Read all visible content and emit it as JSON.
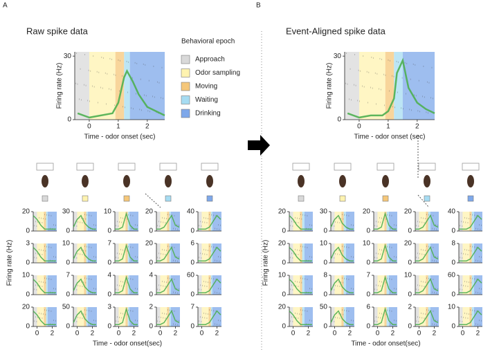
{
  "figure": {
    "panel_labels": [
      "A",
      "B"
    ]
  },
  "legend": {
    "title": "Behavioral epoch",
    "items": [
      {
        "name": "Approach",
        "color": "#d9d9d9"
      },
      {
        "name": "Odor sampling",
        "color": "#fff3b0"
      },
      {
        "name": "Moving",
        "color": "#f5c77a"
      },
      {
        "name": "Waiting",
        "color": "#a6dcf2"
      },
      {
        "name": "Drinking",
        "color": "#7ea8ea"
      }
    ]
  },
  "chart_data": [
    {
      "type": "line",
      "title": "Raw spike data",
      "xlabel": "Time - odor onset (sec)",
      "ylabel": "Firing rate (Hz)",
      "x": [
        -0.4,
        0,
        0.4,
        0.8,
        1.0,
        1.2,
        1.3,
        1.5,
        1.7,
        2.0,
        2.3,
        2.6
      ],
      "values": [
        3,
        1,
        2,
        3,
        8,
        20,
        23,
        18,
        12,
        6,
        4,
        2
      ],
      "color": "#4caf50",
      "xlim": [
        -0.5,
        2.6
      ],
      "xticks": [
        0,
        1,
        2
      ],
      "ylim": [
        0,
        32
      ],
      "yticks": [
        0,
        30
      ],
      "epoch_bounds": [
        -0.5,
        0,
        0.9,
        1.2,
        1.4,
        2.6
      ]
    },
    {
      "type": "line",
      "title": "Event-Aligned spike data",
      "xlabel": "Time - odor onset (sec)",
      "ylabel": "Firing rate (Hz)",
      "x": [
        -0.4,
        0,
        0.4,
        0.8,
        1.0,
        1.2,
        1.3,
        1.5,
        1.7,
        2.0,
        2.3,
        2.6
      ],
      "values": [
        3,
        1,
        2,
        2,
        4,
        10,
        22,
        28,
        15,
        8,
        5,
        3
      ],
      "color": "#4caf50",
      "xlim": [
        -0.5,
        2.6
      ],
      "xticks": [
        0,
        1,
        2
      ],
      "ylim": [
        0,
        32
      ],
      "yticks": [
        0,
        30
      ],
      "epoch_bounds": [
        -0.5,
        0,
        0.9,
        1.2,
        1.5,
        2.6
      ]
    },
    {
      "type": "small_multiples",
      "xlabel": "Time - odor onset(sec)",
      "ylabel": "Firing rate (Hz)",
      "columns": 5,
      "x": [
        -0.5,
        0,
        0.5,
        1,
        1.5,
        2,
        2.5
      ],
      "xlim": [
        -0.5,
        2.6
      ],
      "xticks": [
        0,
        2
      ],
      "color": "#4caf50",
      "epoch_bounds": [
        -0.5,
        0,
        0.9,
        1.2,
        1.4,
        2.6
      ],
      "panels": [
        {
          "ylim": [
            0,
            20
          ],
          "yticks": [
            0,
            20
          ],
          "values": [
            16,
            12,
            6,
            2,
            2,
            2,
            2
          ]
        },
        {
          "ylim": [
            0,
            30
          ],
          "yticks": [
            0,
            30
          ],
          "values": [
            6,
            18,
            24,
            12,
            6,
            3,
            3
          ]
        },
        {
          "ylim": [
            0,
            10
          ],
          "yticks": [
            0,
            10
          ],
          "values": [
            1,
            1,
            2,
            9,
            3,
            1,
            1
          ]
        },
        {
          "ylim": [
            0,
            20
          ],
          "yticks": [
            0,
            20
          ],
          "values": [
            2,
            2,
            4,
            10,
            16,
            6,
            4
          ]
        },
        {
          "ylim": [
            0,
            40
          ],
          "yticks": [
            0,
            40
          ],
          "values": [
            4,
            4,
            4,
            8,
            20,
            32,
            24
          ]
        },
        {
          "ylim": [
            0,
            3
          ],
          "yticks": [
            0,
            3
          ],
          "values": [
            2.4,
            1.8,
            0.9,
            0.3,
            0.3,
            0.3,
            0.3
          ]
        },
        {
          "ylim": [
            0,
            10
          ],
          "yticks": [
            0,
            10
          ],
          "values": [
            2,
            6,
            8,
            4,
            2,
            1,
            1
          ]
        },
        {
          "ylim": [
            0,
            7
          ],
          "yticks": [
            0,
            7
          ],
          "values": [
            0.7,
            0.7,
            1.4,
            6.3,
            2.1,
            0.7,
            0.7
          ]
        },
        {
          "ylim": [
            0,
            20
          ],
          "yticks": [
            0,
            20
          ],
          "values": [
            2,
            2,
            4,
            10,
            16,
            6,
            4
          ]
        },
        {
          "ylim": [
            0,
            6
          ],
          "yticks": [
            0,
            6
          ],
          "values": [
            0.6,
            0.6,
            0.6,
            1.2,
            3,
            4.8,
            3.6
          ]
        },
        {
          "ylim": [
            0,
            10
          ],
          "yticks": [
            0,
            10
          ],
          "values": [
            8,
            6,
            3,
            1,
            1,
            1,
            1
          ]
        },
        {
          "ylim": [
            0,
            7
          ],
          "yticks": [
            0,
            7
          ],
          "values": [
            1.4,
            4.2,
            5.6,
            2.8,
            1.4,
            0.7,
            0.7
          ]
        },
        {
          "ylim": [
            0,
            4
          ],
          "yticks": [
            0,
            4
          ],
          "values": [
            0.4,
            0.4,
            0.8,
            3.6,
            1.2,
            0.4,
            0.4
          ]
        },
        {
          "ylim": [
            0,
            4
          ],
          "yticks": [
            0,
            4
          ],
          "values": [
            0.4,
            0.4,
            0.8,
            2,
            3.2,
            1.2,
            0.8
          ]
        },
        {
          "ylim": [
            0,
            60
          ],
          "yticks": [
            0,
            60
          ],
          "values": [
            6,
            6,
            6,
            12,
            30,
            48,
            36
          ]
        },
        {
          "ylim": [
            0,
            20
          ],
          "yticks": [
            0,
            20
          ],
          "values": [
            16,
            12,
            6,
            2,
            2,
            2,
            2
          ]
        },
        {
          "ylim": [
            0,
            50
          ],
          "yticks": [
            0,
            50
          ],
          "values": [
            10,
            30,
            40,
            20,
            10,
            5,
            5
          ]
        },
        {
          "ylim": [
            0,
            3
          ],
          "yticks": [
            0,
            3
          ],
          "values": [
            0.3,
            0.3,
            0.6,
            2.7,
            0.9,
            0.3,
            0.3
          ]
        },
        {
          "ylim": [
            0,
            2
          ],
          "yticks": [
            0,
            2
          ],
          "values": [
            0.2,
            0.2,
            0.4,
            1,
            1.6,
            0.6,
            0.4
          ]
        },
        {
          "ylim": [
            0,
            7
          ],
          "yticks": [
            0,
            7
          ],
          "values": [
            0.7,
            0.7,
            0.7,
            1.4,
            3.5,
            5.6,
            4.2
          ]
        }
      ]
    },
    {
      "type": "small_multiples",
      "xlabel": "Time - odor onset(sec)",
      "ylabel": "Firing rate (Hz)",
      "columns": 5,
      "x": [
        -0.5,
        0,
        0.5,
        1,
        1.5,
        2,
        2.5
      ],
      "xlim": [
        -0.5,
        2.6
      ],
      "xticks": [
        0,
        2
      ],
      "color": "#4caf50",
      "epoch_bounds": [
        -0.5,
        0,
        0.9,
        1.2,
        1.5,
        2.6
      ],
      "panels": [
        {
          "ylim": [
            0,
            20
          ],
          "yticks": [
            0,
            20
          ],
          "values": [
            16,
            12,
            6,
            2,
            2,
            2,
            2
          ]
        },
        {
          "ylim": [
            0,
            30
          ],
          "yticks": [
            0,
            30
          ],
          "values": [
            6,
            18,
            24,
            12,
            6,
            3,
            3
          ]
        },
        {
          "ylim": [
            0,
            20
          ],
          "yticks": [
            0,
            20
          ],
          "values": [
            2,
            2,
            4,
            18,
            6,
            2,
            2
          ]
        },
        {
          "ylim": [
            0,
            20
          ],
          "yticks": [
            0,
            20
          ],
          "values": [
            2,
            2,
            4,
            10,
            16,
            6,
            4
          ]
        },
        {
          "ylim": [
            0,
            40
          ],
          "yticks": [
            0,
            40
          ],
          "values": [
            4,
            4,
            4,
            8,
            20,
            32,
            24
          ]
        },
        {
          "ylim": [
            0,
            20
          ],
          "yticks": [
            0,
            20
          ],
          "values": [
            16,
            12,
            6,
            2,
            2,
            2,
            2
          ]
        },
        {
          "ylim": [
            0,
            10
          ],
          "yticks": [
            0,
            10
          ],
          "values": [
            2,
            6,
            8,
            4,
            2,
            1,
            1
          ]
        },
        {
          "ylim": [
            0,
            10
          ],
          "yticks": [
            0,
            10
          ],
          "values": [
            1,
            1,
            2,
            9,
            3,
            1,
            1
          ]
        },
        {
          "ylim": [
            0,
            20
          ],
          "yticks": [
            0,
            20
          ],
          "values": [
            2,
            2,
            4,
            10,
            16,
            6,
            4
          ]
        },
        {
          "ylim": [
            0,
            8
          ],
          "yticks": [
            0,
            8
          ],
          "values": [
            0.8,
            0.8,
            0.8,
            1.6,
            4,
            6.4,
            4.8
          ]
        },
        {
          "ylim": [
            0,
            10
          ],
          "yticks": [
            0,
            10
          ],
          "values": [
            8,
            6,
            3,
            1,
            1,
            1,
            1
          ]
        },
        {
          "ylim": [
            0,
            8
          ],
          "yticks": [
            0,
            8
          ],
          "values": [
            1.6,
            4.8,
            6.4,
            3.2,
            1.6,
            0.8,
            0.8
          ]
        },
        {
          "ylim": [
            0,
            7
          ],
          "yticks": [
            0,
            7
          ],
          "values": [
            0.7,
            0.7,
            1.4,
            6.3,
            2.1,
            0.7,
            0.7
          ]
        },
        {
          "ylim": [
            0,
            10
          ],
          "yticks": [
            0,
            10
          ],
          "values": [
            1,
            1,
            2,
            5,
            8,
            3,
            2
          ]
        },
        {
          "ylim": [
            0,
            60
          ],
          "yticks": [
            0,
            60
          ],
          "values": [
            6,
            6,
            6,
            12,
            30,
            48,
            36
          ]
        },
        {
          "ylim": [
            0,
            20
          ],
          "yticks": [
            0,
            20
          ],
          "values": [
            16,
            12,
            6,
            2,
            2,
            2,
            2
          ]
        },
        {
          "ylim": [
            0,
            50
          ],
          "yticks": [
            0,
            50
          ],
          "values": [
            10,
            30,
            40,
            20,
            10,
            5,
            5
          ]
        },
        {
          "ylim": [
            0,
            6
          ],
          "yticks": [
            0,
            6
          ],
          "values": [
            0.6,
            0.6,
            1.2,
            5.4,
            1.8,
            0.6,
            0.6
          ]
        },
        {
          "ylim": [
            0,
            2
          ],
          "yticks": [
            0,
            2
          ],
          "values": [
            0.2,
            0.2,
            0.4,
            1,
            1.6,
            0.6,
            0.4
          ]
        },
        {
          "ylim": [
            0,
            10
          ],
          "yticks": [
            0,
            10
          ],
          "values": [
            1,
            1,
            1,
            2,
            5,
            8,
            6
          ]
        }
      ]
    }
  ]
}
